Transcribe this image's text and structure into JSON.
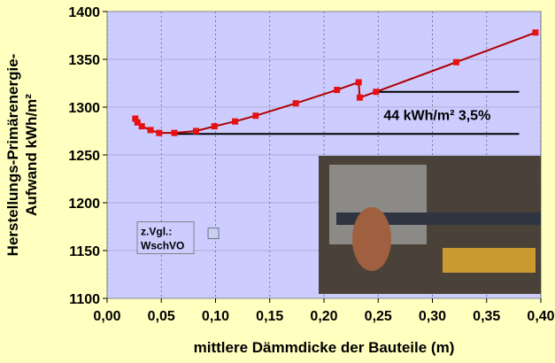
{
  "chart_data": {
    "type": "line",
    "x_label": "mittlere Dämmdicke der Bauteile (m)",
    "y_label": [
      "Herstellungs-Primärenergie-",
      "Aufwand kWh/m²"
    ],
    "series": [
      {
        "name": "Primärenergie",
        "color": "#b00000",
        "marker_color": "#e81010",
        "x": [
          0.026,
          0.028,
          0.032,
          0.04,
          0.048,
          0.062,
          0.082,
          0.099,
          0.118,
          0.137,
          0.174,
          0.212,
          0.232,
          0.233,
          0.248,
          0.322,
          0.395
        ],
        "values": [
          1288,
          1284,
          1280,
          1276,
          1273,
          1273,
          1275,
          1280,
          1285,
          1291,
          1304,
          1318,
          1326,
          1310,
          1316,
          1347,
          1378
        ]
      }
    ],
    "reference_lines": [
      {
        "y": 1316,
        "x": [
          0.25,
          0.38
        ]
      },
      {
        "y": 1272,
        "x": [
          0.063,
          0.38
        ]
      }
    ],
    "annotation": {
      "text": "44 kWh/m²  3,5%",
      "x": 0.255,
      "y": 1292
    },
    "comparison": {
      "label": [
        "z.Vgl.:",
        "WschVO"
      ],
      "x": 0.098,
      "y": 1168,
      "color": "#c8d0f0"
    },
    "xlim": [
      0,
      0.4
    ],
    "xticks": [
      {
        "value": 0,
        "label": "0,00"
      },
      {
        "value": 0.05,
        "label": "0,05"
      },
      {
        "value": 0.1,
        "label": "0,10"
      },
      {
        "value": 0.15,
        "label": "0,15"
      },
      {
        "value": 0.2,
        "label": "0,20"
      },
      {
        "value": 0.25,
        "label": "0,25"
      },
      {
        "value": 0.3,
        "label": "0,30"
      },
      {
        "value": 0.35,
        "label": "0,35"
      },
      {
        "value": 0.4,
        "label": "0,40"
      }
    ],
    "ylim": [
      1100,
      1400
    ],
    "yticks": [
      1100,
      1150,
      1200,
      1250,
      1300,
      1350,
      1400
    ],
    "grid": true
  }
}
